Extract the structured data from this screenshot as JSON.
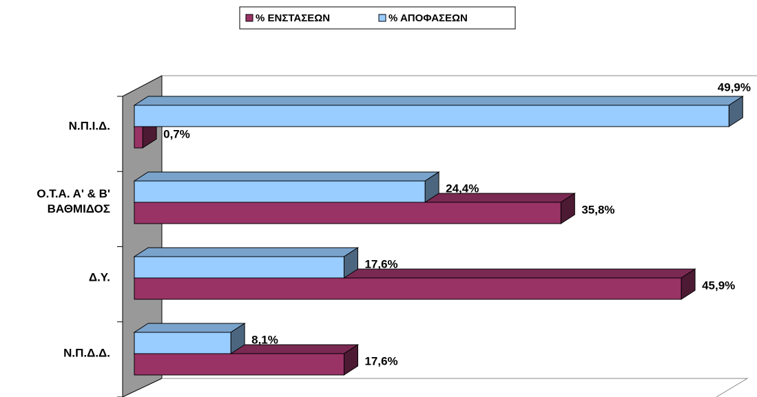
{
  "chart_data": {
    "type": "bar",
    "orientation": "horizontal",
    "categories": [
      "Ν.Π.Ι.Δ.",
      "Ο.Τ.Α. Α' & Β'\nΒΑΘΜΙΔΟΣ",
      "Δ.Υ.",
      "Ν.Π.Δ.Δ."
    ],
    "series": [
      {
        "name": "% ΕΝΣΤΑΣΕΩΝ",
        "color": "#993366",
        "values": [
          0.7,
          35.8,
          45.9,
          17.6
        ],
        "value_labels": [
          "0,7%",
          "35,8%",
          "45,9%",
          "17,6%"
        ]
      },
      {
        "name": "% ΑΠΟΦΑΣΕΩΝ",
        "color": "#99ccff",
        "values": [
          49.9,
          24.4,
          17.6,
          8.1
        ],
        "value_labels": [
          "49,9%",
          "24,4%",
          "17,6%",
          "8,1%"
        ]
      }
    ],
    "xlim": [
      0,
      50
    ],
    "legend": "top"
  }
}
